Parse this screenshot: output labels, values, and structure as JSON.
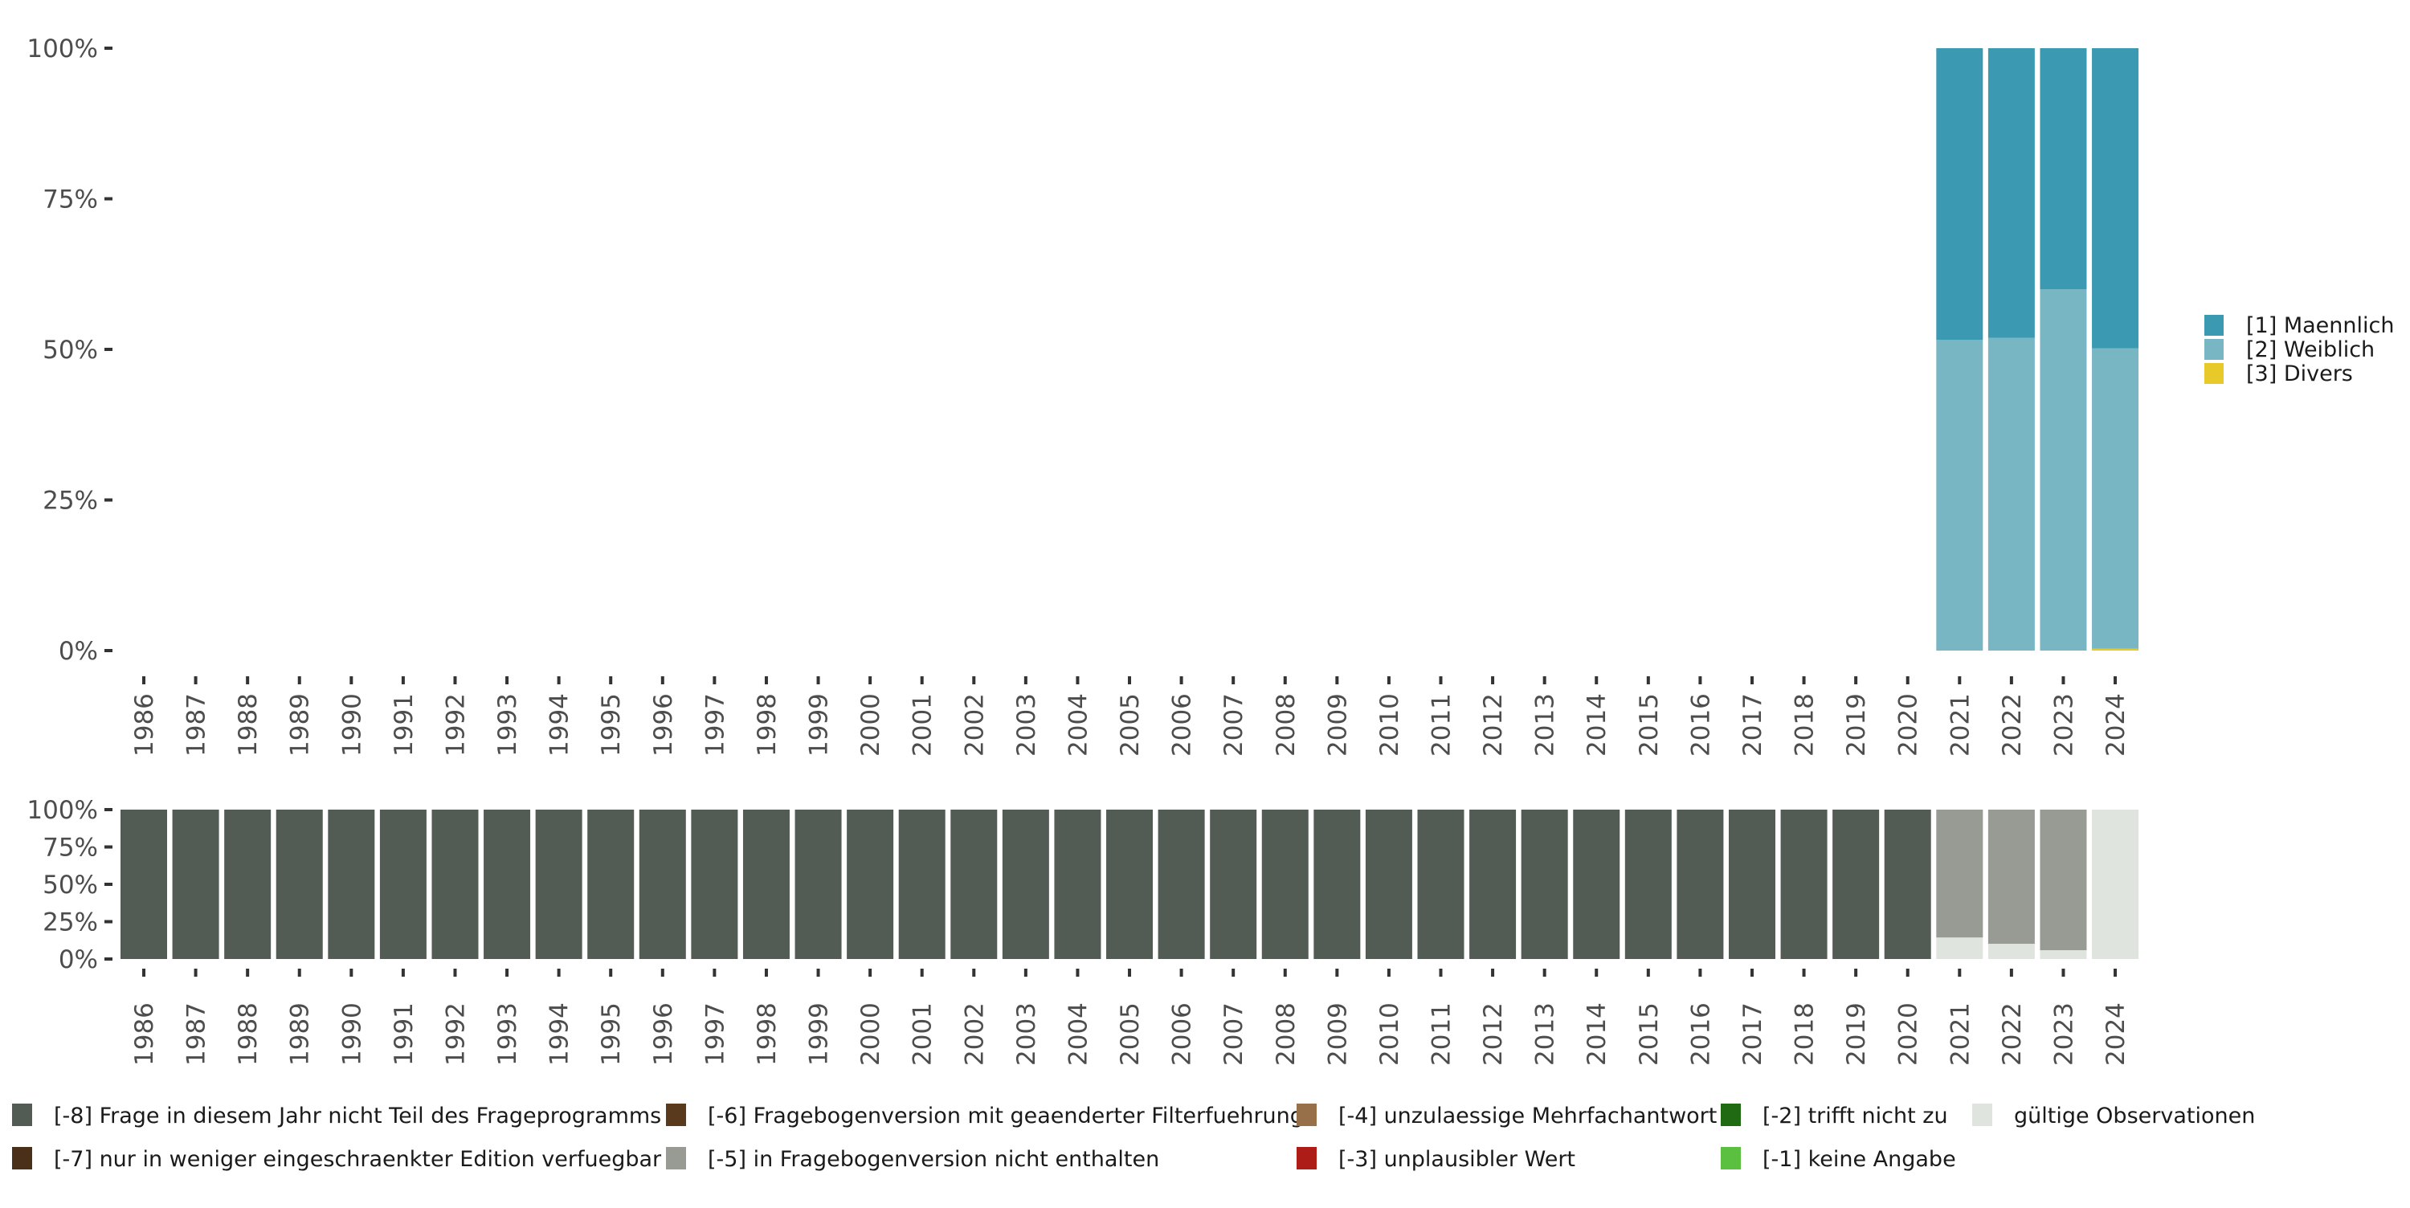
{
  "chart_data": [
    {
      "type": "bar",
      "stacked": true,
      "title": "",
      "xlabel": "",
      "ylabel": "",
      "ylim": [
        0,
        100
      ],
      "yticks": [
        "0%",
        "25%",
        "50%",
        "75%",
        "100%"
      ],
      "categories": [
        "1986",
        "1987",
        "1988",
        "1989",
        "1990",
        "1991",
        "1992",
        "1993",
        "1994",
        "1995",
        "1996",
        "1997",
        "1998",
        "1999",
        "2000",
        "2001",
        "2002",
        "2003",
        "2004",
        "2005",
        "2006",
        "2007",
        "2008",
        "2009",
        "2010",
        "2011",
        "2012",
        "2013",
        "2014",
        "2015",
        "2016",
        "2017",
        "2018",
        "2019",
        "2020",
        "2021",
        "2022",
        "2023",
        "2024"
      ],
      "legend_position": "right",
      "series": [
        {
          "name": "[3] Divers",
          "color": "#e8c92a",
          "values": [
            0,
            0,
            0,
            0,
            0,
            0,
            0,
            0,
            0,
            0,
            0,
            0,
            0,
            0,
            0,
            0,
            0,
            0,
            0,
            0,
            0,
            0,
            0,
            0,
            0,
            0,
            0,
            0,
            0,
            0,
            0,
            0,
            0,
            0,
            0,
            0,
            0,
            0,
            0.3
          ]
        },
        {
          "name": "[2] Weiblich",
          "color": "#79b6c4",
          "values": [
            0,
            0,
            0,
            0,
            0,
            0,
            0,
            0,
            0,
            0,
            0,
            0,
            0,
            0,
            0,
            0,
            0,
            0,
            0,
            0,
            0,
            0,
            0,
            0,
            0,
            0,
            0,
            0,
            0,
            0,
            0,
            0,
            0,
            0,
            0,
            51.6,
            51.9,
            60.0,
            49.9
          ]
        },
        {
          "name": "[1] Maennlich",
          "color": "#3c99b2",
          "values": [
            0,
            0,
            0,
            0,
            0,
            0,
            0,
            0,
            0,
            0,
            0,
            0,
            0,
            0,
            0,
            0,
            0,
            0,
            0,
            0,
            0,
            0,
            0,
            0,
            0,
            0,
            0,
            0,
            0,
            0,
            0,
            0,
            0,
            0,
            0,
            48.4,
            48.1,
            40.0,
            49.8
          ]
        }
      ],
      "legend": [
        "[1] Maennlich",
        "[2] Weiblich",
        "[3] Divers"
      ]
    },
    {
      "type": "bar",
      "stacked": true,
      "ylim": [
        0,
        100
      ],
      "yticks": [
        "0%",
        "25%",
        "50%",
        "75%",
        "100%"
      ],
      "categories": [
        "1986",
        "1987",
        "1988",
        "1989",
        "1990",
        "1991",
        "1992",
        "1993",
        "1994",
        "1995",
        "1996",
        "1997",
        "1998",
        "1999",
        "2000",
        "2001",
        "2002",
        "2003",
        "2004",
        "2005",
        "2006",
        "2007",
        "2008",
        "2009",
        "2010",
        "2011",
        "2012",
        "2013",
        "2014",
        "2015",
        "2016",
        "2017",
        "2018",
        "2019",
        "2020",
        "2021",
        "2022",
        "2023",
        "2024"
      ],
      "legend_position": "bottom",
      "series": [
        {
          "name": "gültige Observationen",
          "color": "#e0e4df",
          "values": [
            0,
            0,
            0,
            0,
            0,
            0,
            0,
            0,
            0,
            0,
            0,
            0,
            0,
            0,
            0,
            0,
            0,
            0,
            0,
            0,
            0,
            0,
            0,
            0,
            0,
            0,
            0,
            0,
            0,
            0,
            0,
            0,
            0,
            0,
            0,
            14.4,
            10.2,
            5.9,
            100
          ]
        },
        {
          "name": "[-5] in Fragebogenversion nicht enthalten",
          "color": "#979b94",
          "values": [
            0,
            0,
            0,
            0,
            0,
            0,
            0,
            0,
            0,
            0,
            0,
            0,
            0,
            0,
            0,
            0,
            0,
            0,
            0,
            0,
            0,
            0,
            0,
            0,
            0,
            0,
            0,
            0,
            0,
            0,
            0,
            0,
            0,
            0,
            0,
            85.6,
            89.8,
            94.1,
            0
          ]
        },
        {
          "name": "[-8] Frage in diesem Jahr nicht Teil des Frageprogramms",
          "color": "#535b55",
          "values": [
            100,
            100,
            100,
            100,
            100,
            100,
            100,
            100,
            100,
            100,
            100,
            100,
            100,
            100,
            100,
            100,
            100,
            100,
            100,
            100,
            100,
            100,
            100,
            100,
            100,
            100,
            100,
            100,
            100,
            100,
            100,
            100,
            100,
            100,
            100,
            0,
            0,
            0,
            0
          ]
        }
      ],
      "legend": [
        {
          "label": "[-8] Frage in diesem Jahr nicht Teil des Frageprogramms",
          "color": "#535b55"
        },
        {
          "label": "[-7] nur in weniger eingeschraenkter Edition verfuegbar",
          "color": "#4a3019"
        },
        {
          "label": "[-6] Fragebogenversion mit geaenderter Filterfuehrung",
          "color": "#5a3a1c"
        },
        {
          "label": "[-5] in Fragebogenversion nicht enthalten",
          "color": "#979b94"
        },
        {
          "label": "[-4] unzulaessige Mehrfachantwort",
          "color": "#977049"
        },
        {
          "label": "[-3] unplausibler Wert",
          "color": "#ad1c17"
        },
        {
          "label": "[-2] trifft nicht zu",
          "color": "#1f6a12"
        },
        {
          "label": "[-1] keine Angabe",
          "color": "#5bbf40"
        },
        {
          "label": "gültige Observationen",
          "color": "#e0e4df"
        }
      ]
    }
  ]
}
